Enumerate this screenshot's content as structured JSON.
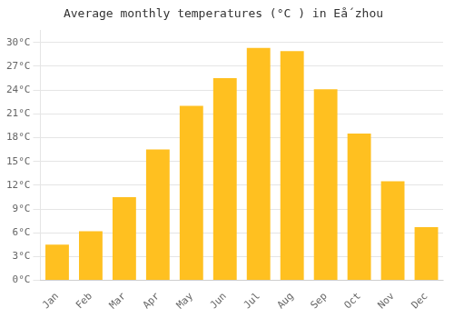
{
  "chart_data": {
    "type": "bar",
    "title": "Average monthly temperatures (°C ) in Eǻ zhou",
    "categories": [
      "Jan",
      "Feb",
      "Mar",
      "Apr",
      "May",
      "Jun",
      "Jul",
      "Aug",
      "Sep",
      "Oct",
      "Nov",
      "Dec"
    ],
    "values": [
      4.5,
      6.2,
      10.5,
      16.5,
      22.0,
      25.5,
      29.3,
      28.9,
      24.1,
      18.5,
      12.5,
      6.7
    ],
    "color": "#FFC020",
    "ylim": [
      0,
      31.5
    ],
    "yticks": [
      {
        "value": 0,
        "label": "0°C"
      },
      {
        "value": 3,
        "label": "3°C"
      },
      {
        "value": 6,
        "label": "6°C"
      },
      {
        "value": 9,
        "label": "9°C"
      },
      {
        "value": 12,
        "label": "12°C"
      },
      {
        "value": 15,
        "label": "15°C"
      },
      {
        "value": 18,
        "label": "18°C"
      },
      {
        "value": 21,
        "label": "21°C"
      },
      {
        "value": 24,
        "label": "24°C"
      },
      {
        "value": 27,
        "label": "27°C"
      },
      {
        "value": 30,
        "label": "30°C"
      }
    ],
    "grid": true
  }
}
